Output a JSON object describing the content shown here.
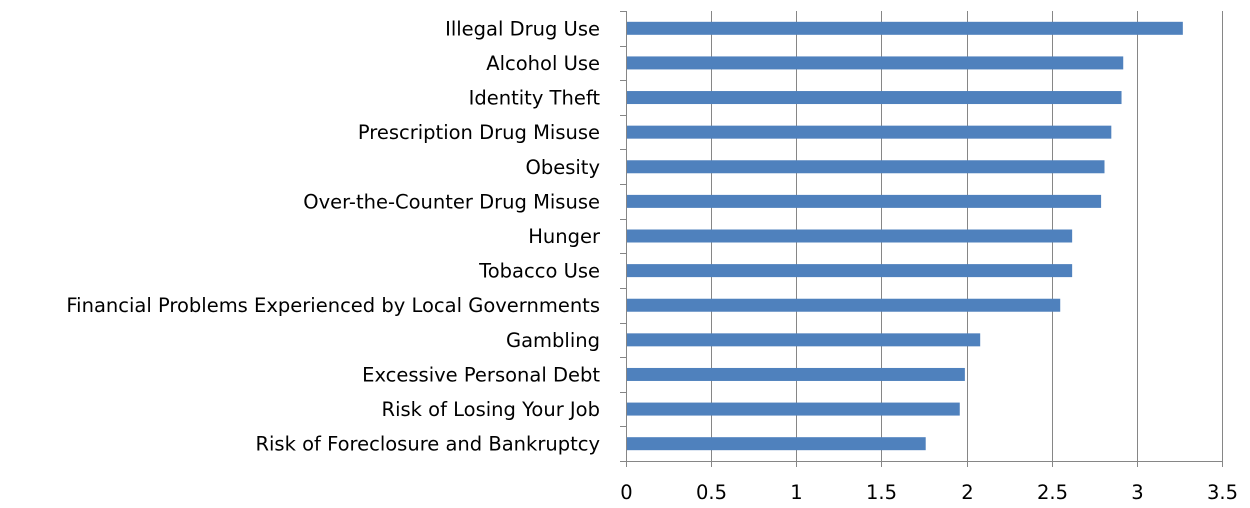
{
  "chart_data": {
    "type": "bar",
    "orientation": "horizontal",
    "title": "",
    "xlabel": "",
    "ylabel": "",
    "categories": [
      "Illegal Drug Use",
      "Alcohol Use",
      "Identity Theft",
      "Prescription Drug Misuse",
      "Obesity",
      "Over-the-Counter Drug Misuse",
      "Hunger",
      "Tobacco Use",
      "Financial Problems Experienced by Local Governments",
      "Gambling",
      "Excessive Personal Debt",
      "Risk of Losing Your Job",
      "Risk of Foreclosure and Bankruptcy"
    ],
    "values": [
      3.27,
      2.92,
      2.91,
      2.85,
      2.81,
      2.79,
      2.62,
      2.62,
      2.55,
      2.08,
      1.99,
      1.96,
      1.76
    ],
    "xlim": [
      0,
      3.5
    ],
    "xticks": [
      "0",
      "0.5",
      "1",
      "1.5",
      "2",
      "2.5",
      "3",
      "3.5"
    ],
    "grid": "vertical",
    "legend": "none",
    "bar_color": "#4F81BD",
    "grid_color": "#868686",
    "axis_color": "#868686"
  }
}
